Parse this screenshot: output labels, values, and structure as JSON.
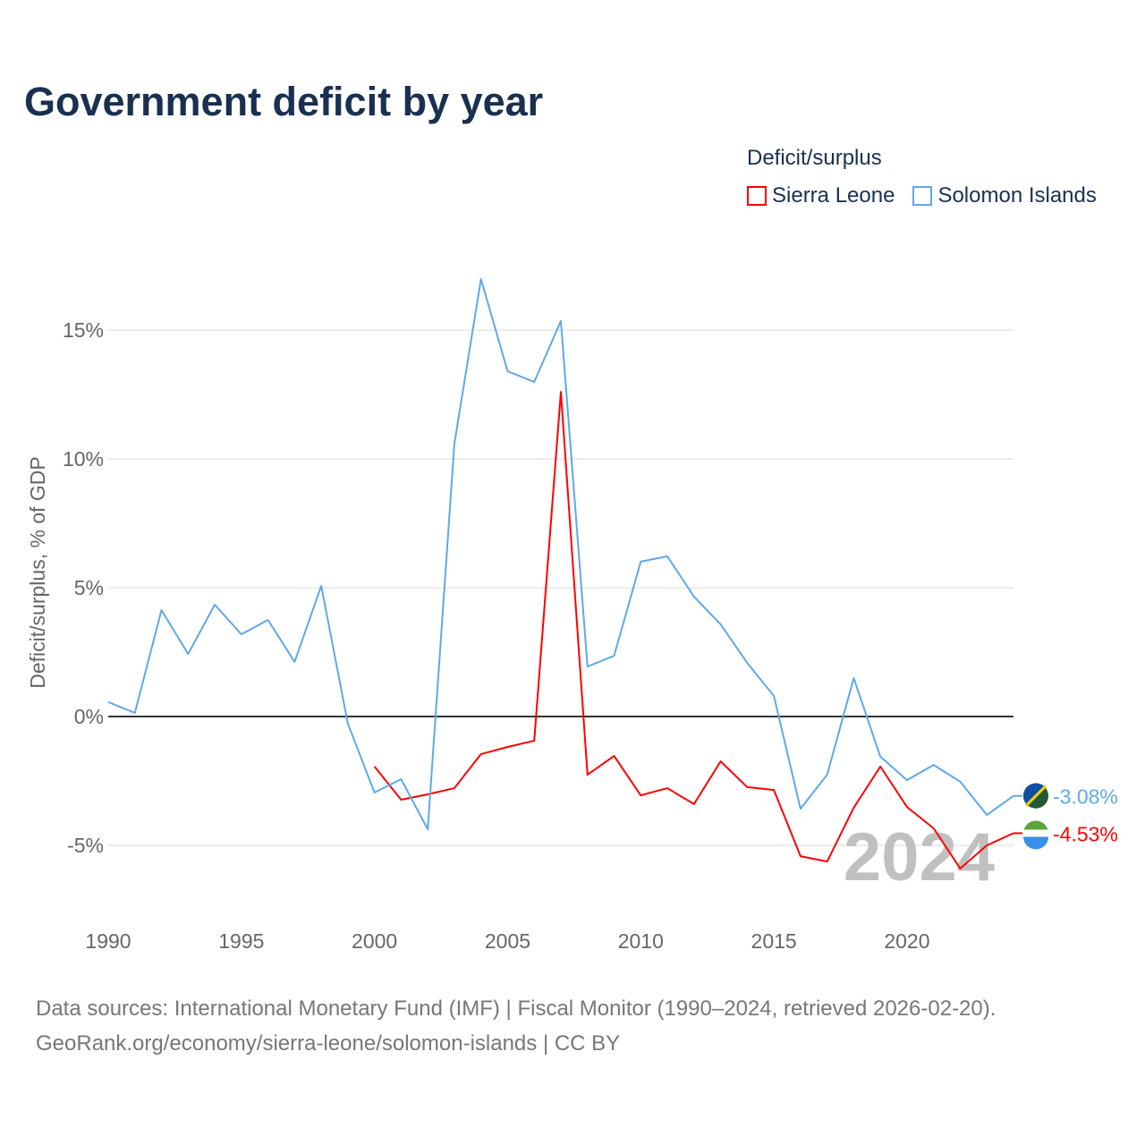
{
  "title": "Government deficit by year",
  "legend": {
    "title": "Deficit/surplus",
    "items": [
      {
        "label": "Sierra Leone",
        "color": "#ff0000"
      },
      {
        "label": "Solomon Islands",
        "color": "#5fa8ea"
      }
    ]
  },
  "footer": {
    "line1": "Data sources: International Monetary Fund (IMF) | Fiscal Monitor (1990–2024, retrieved 2026-02-20).",
    "line2": "GeoRank.org/economy/sierra-leone/solomon-islands | CC BY"
  },
  "chart_data": {
    "type": "line",
    "title": "Government deficit by year",
    "xlabel": "",
    "ylabel": "Deficit/surplus, % of GDP",
    "xlim": [
      1990,
      2024
    ],
    "ylim": [
      -7,
      17
    ],
    "x_ticks": [
      1990,
      1995,
      2000,
      2005,
      2010,
      2015,
      2020
    ],
    "x_tick_labels": [
      "1990",
      "1995",
      "2000",
      "2005",
      "2010",
      "2015",
      "2020"
    ],
    "y_ticks": [
      -5,
      0,
      5,
      10,
      15
    ],
    "y_tick_labels": [
      "-5%",
      "0%",
      "5%",
      "10%",
      "15%"
    ],
    "watermark_year": "2024",
    "legend_position": "top-right",
    "series": [
      {
        "name": "Sierra Leone",
        "color": "#ff0000",
        "end_label": "-4.53%",
        "x": [
          2000,
          2001,
          2002,
          2003,
          2004,
          2005,
          2006,
          2007,
          2008,
          2009,
          2010,
          2011,
          2012,
          2013,
          2014,
          2015,
          2016,
          2017,
          2018,
          2019,
          2020,
          2021,
          2022,
          2023,
          2024
        ],
        "values": [
          -1.94,
          -3.23,
          -3.02,
          -2.78,
          -1.46,
          -1.18,
          -0.94,
          12.6,
          -2.26,
          -1.53,
          -3.06,
          -2.78,
          -3.4,
          -1.74,
          -2.74,
          -2.85,
          -5.42,
          -5.63,
          -3.54,
          -1.94,
          -3.51,
          -4.34,
          -5.9,
          -5.0,
          -4.53
        ]
      },
      {
        "name": "Solomon Islands",
        "color": "#5fa8ea",
        "end_label": "-3.08%",
        "x": [
          1990,
          1991,
          1992,
          1993,
          1994,
          1995,
          1996,
          1997,
          1998,
          1999,
          2000,
          2001,
          2002,
          2003,
          2004,
          2005,
          2006,
          2007,
          2008,
          2009,
          2010,
          2011,
          2012,
          2013,
          2014,
          2015,
          2016,
          2017,
          2018,
          2019,
          2020,
          2021,
          2022,
          2023,
          2024
        ],
        "values": [
          0.56,
          0.14,
          4.13,
          2.43,
          4.34,
          3.19,
          3.75,
          2.12,
          5.07,
          -0.28,
          -2.95,
          -2.43,
          -4.38,
          10.59,
          16.98,
          13.4,
          12.99,
          15.35,
          1.94,
          2.36,
          6.01,
          6.22,
          4.65,
          3.58,
          2.08,
          0.8,
          -3.58,
          -2.26,
          1.49,
          -1.56,
          -2.47,
          -1.88,
          -2.53,
          -3.82,
          -3.08
        ]
      }
    ]
  }
}
